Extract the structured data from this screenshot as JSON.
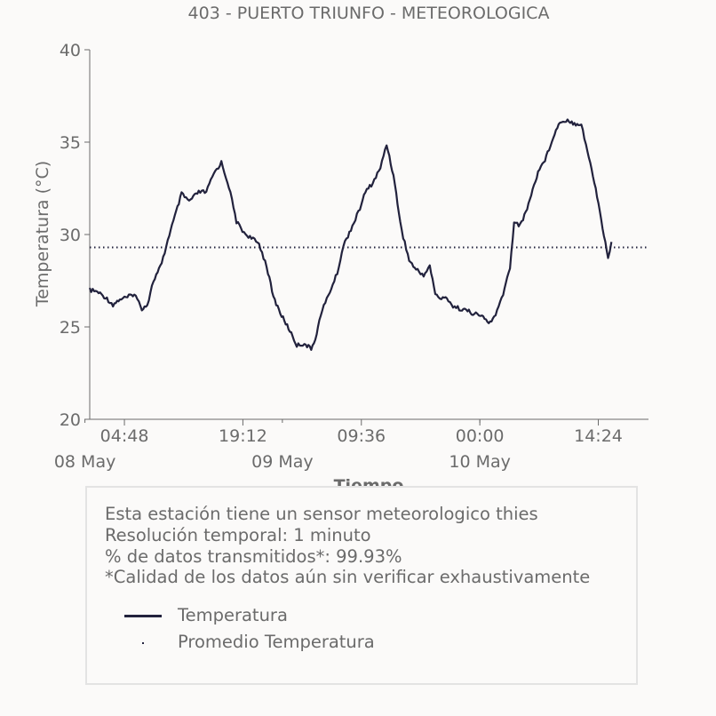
{
  "chart_data": {
    "type": "line",
    "title": "403 - PUERTO TRIUNFO - METEOROLOGICA",
    "xlabel": "Tiempo",
    "ylabel": "Temperatura (°C)",
    "ylim": [
      20,
      40
    ],
    "yticks": [
      20,
      25,
      30,
      35,
      40
    ],
    "xlim": [
      "2020-05-08T00:35",
      "2020-05-10T20:30"
    ],
    "xticks_time": [
      {
        "x": "2020-05-08T04:48",
        "label": "04:48"
      },
      {
        "x": "2020-05-08T19:12",
        "label": "19:12"
      },
      {
        "x": "2020-05-09T09:36",
        "label": "09:36"
      },
      {
        "x": "2020-05-10T00:00",
        "label": "00:00"
      },
      {
        "x": "2020-05-10T14:24",
        "label": "14:24"
      }
    ],
    "xticks_date": [
      {
        "x": "2020-05-08T00:00",
        "label": "08 May"
      },
      {
        "x": "2020-05-09T00:00",
        "label": "09 May"
      },
      {
        "x": "2020-05-10T00:00",
        "label": "10 May"
      }
    ],
    "grid": false,
    "series": [
      {
        "name": "Temperatura",
        "style": "solid",
        "color": "#22223d",
        "points": [
          [
            "2020-05-08T00:35",
            27.0
          ],
          [
            "2020-05-08T01:30",
            26.9
          ],
          [
            "2020-05-08T02:30",
            26.6
          ],
          [
            "2020-05-08T03:25",
            26.2
          ],
          [
            "2020-05-08T04:15",
            26.5
          ],
          [
            "2020-05-08T05:10",
            26.6
          ],
          [
            "2020-05-08T06:00",
            26.8
          ],
          [
            "2020-05-08T06:55",
            26.0
          ],
          [
            "2020-05-08T07:35",
            26.2
          ],
          [
            "2020-05-08T08:20",
            27.5
          ],
          [
            "2020-05-08T09:20",
            28.4
          ],
          [
            "2020-05-08T10:15",
            30.0
          ],
          [
            "2020-05-08T11:05",
            31.2
          ],
          [
            "2020-05-08T11:45",
            32.2
          ],
          [
            "2020-05-08T12:40",
            31.8
          ],
          [
            "2020-05-08T13:50",
            32.3
          ],
          [
            "2020-05-08T14:45",
            32.3
          ],
          [
            "2020-05-08T15:40",
            33.3
          ],
          [
            "2020-05-08T16:35",
            33.9
          ],
          [
            "2020-05-08T17:30",
            32.6
          ],
          [
            "2020-05-08T18:25",
            30.7
          ],
          [
            "2020-05-08T19:20",
            30.1
          ],
          [
            "2020-05-08T20:15",
            29.8
          ],
          [
            "2020-05-08T21:10",
            29.5
          ],
          [
            "2020-05-08T22:05",
            28.3
          ],
          [
            "2020-05-08T22:55",
            26.6
          ],
          [
            "2020-05-08T23:55",
            25.6
          ],
          [
            "2020-05-09T00:55",
            24.8
          ],
          [
            "2020-05-09T01:45",
            24.0
          ],
          [
            "2020-05-09T02:40",
            24.1
          ],
          [
            "2020-05-09T03:30",
            23.8
          ],
          [
            "2020-05-09T04:10",
            24.6
          ],
          [
            "2020-05-09T04:40",
            25.7
          ],
          [
            "2020-05-09T05:35",
            26.7
          ],
          [
            "2020-05-09T06:40",
            27.9
          ],
          [
            "2020-05-09T07:25",
            29.4
          ],
          [
            "2020-05-09T08:20",
            30.3
          ],
          [
            "2020-05-09T09:15",
            31.2
          ],
          [
            "2020-05-09T10:05",
            32.3
          ],
          [
            "2020-05-09T11:00",
            32.8
          ],
          [
            "2020-05-09T11:55",
            33.6
          ],
          [
            "2020-05-09T12:40",
            34.9
          ],
          [
            "2020-05-09T13:30",
            33.2
          ],
          [
            "2020-05-09T14:30",
            30.2
          ],
          [
            "2020-05-09T15:25",
            28.6
          ],
          [
            "2020-05-09T16:15",
            28.1
          ],
          [
            "2020-05-09T17:10",
            27.8
          ],
          [
            "2020-05-09T17:55",
            28.3
          ],
          [
            "2020-05-09T18:35",
            26.8
          ],
          [
            "2020-05-09T19:20",
            26.5
          ],
          [
            "2020-05-09T20:00",
            26.6
          ],
          [
            "2020-05-09T20:45",
            26.1
          ],
          [
            "2020-05-09T21:30",
            26.0
          ],
          [
            "2020-05-09T22:20",
            25.9
          ],
          [
            "2020-05-09T23:20",
            25.7
          ],
          [
            "2020-05-10T00:15",
            25.6
          ],
          [
            "2020-05-10T01:05",
            25.2
          ],
          [
            "2020-05-10T01:55",
            25.6
          ],
          [
            "2020-05-10T02:50",
            26.8
          ],
          [
            "2020-05-10T03:40",
            28.2
          ],
          [
            "2020-05-10T04:10",
            30.7
          ],
          [
            "2020-05-10T04:55",
            30.5
          ],
          [
            "2020-05-10T05:35",
            31.2
          ],
          [
            "2020-05-10T06:25",
            32.4
          ],
          [
            "2020-05-10T07:05",
            33.4
          ],
          [
            "2020-05-10T08:05",
            34.2
          ],
          [
            "2020-05-10T08:55",
            35.3
          ],
          [
            "2020-05-10T09:45",
            36.1
          ],
          [
            "2020-05-10T10:40",
            36.2
          ],
          [
            "2020-05-10T11:30",
            36.0
          ],
          [
            "2020-05-10T12:20",
            36.0
          ],
          [
            "2020-05-10T13:05",
            34.5
          ],
          [
            "2020-05-10T14:05",
            32.5
          ],
          [
            "2020-05-10T14:55",
            30.4
          ],
          [
            "2020-05-10T15:35",
            28.7
          ],
          [
            "2020-05-10T16:00",
            29.6
          ]
        ]
      },
      {
        "name": "Promedio Temperatura",
        "style": "dotted",
        "color": "#22223d",
        "points": [
          [
            "2020-05-08T00:35",
            29.3
          ],
          [
            "2020-05-10T16:00",
            29.3
          ]
        ]
      }
    ]
  },
  "info": {
    "line1": "Esta estación tiene un sensor meteorologico thies",
    "line2": "Resolución temporal: 1 minuto",
    "line3": "% de datos transmitidos*: 99.93%",
    "line4": "*Calidad de los datos aún sin verificar exhaustivamente"
  },
  "legend": {
    "series1": "Temperatura",
    "series2": "Promedio Temperatura"
  },
  "colors": {
    "line": "#22223d",
    "text": "#6b6b6b",
    "background": "#fbfaf9"
  }
}
